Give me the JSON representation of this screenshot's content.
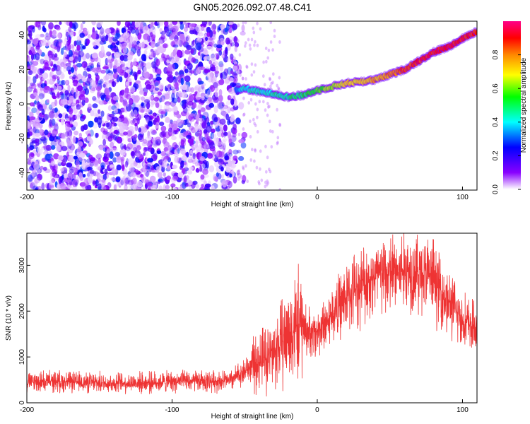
{
  "chart_data": [
    {
      "type": "heatmap",
      "title": "GN05.2026.092.07.48.C41",
      "xlabel": "Height of straight line (km)",
      "ylabel": "Frequency (Hz)",
      "xlim": [
        -200,
        110
      ],
      "ylim": [
        -50,
        48
      ],
      "xticks": [
        "-200",
        "-100",
        "0",
        "100"
      ],
      "yticks": [
        "40",
        "20",
        "0",
        "-20",
        "-40"
      ],
      "colorbar": {
        "label": "Normalized spectral amplitude",
        "range": [
          0,
          1
        ],
        "ticks": [
          "0.0",
          "0.2",
          "0.4",
          "0.6",
          "0.8"
        ],
        "colors": [
          "#ffffff",
          "#8800ff",
          "#0000ff",
          "#00ffff",
          "#00ff00",
          "#ffff00",
          "#ff8800",
          "#ff0000",
          "#ff0088"
        ]
      },
      "noise_region": {
        "x_from": -200,
        "x_to": -56,
        "amplitude_approx": 0.15
      },
      "frequency_track": {
        "x": [
          -56,
          -50,
          -40,
          -30,
          -20,
          -10,
          0,
          10,
          20,
          30,
          40,
          50,
          60,
          70,
          80,
          90,
          100,
          110
        ],
        "freq": [
          8,
          9,
          7,
          6,
          4,
          5,
          8,
          10,
          12,
          13,
          14,
          17,
          20,
          25,
          30,
          33,
          38,
          42
        ],
        "amplitude": [
          0.35,
          0.4,
          0.42,
          0.45,
          0.48,
          0.5,
          0.55,
          0.62,
          0.7,
          0.72,
          0.75,
          0.8,
          0.85,
          0.88,
          0.9,
          0.9,
          0.9,
          0.88
        ]
      }
    },
    {
      "type": "line",
      "xlabel": "Height of straight line (km)",
      "ylabel": "SNR (10 * v/v)",
      "xlim": [
        -200,
        110
      ],
      "ylim": [
        0,
        3700
      ],
      "xticks": [
        "-200",
        "-100",
        "0",
        "100"
      ],
      "yticks": [
        "0",
        "1000",
        "2000",
        "3000"
      ],
      "color": "#ee3333",
      "x": [
        -200,
        -180,
        -160,
        -140,
        -120,
        -100,
        -80,
        -60,
        -50,
        -40,
        -30,
        -25,
        -20,
        -15,
        -10,
        -5,
        0,
        10,
        20,
        30,
        40,
        50,
        60,
        70,
        80,
        90,
        100,
        110
      ],
      "y": [
        450,
        470,
        440,
        430,
        440,
        460,
        470,
        480,
        700,
        900,
        1100,
        1300,
        1500,
        1650,
        1700,
        1500,
        1550,
        1900,
        2300,
        2550,
        2750,
        2800,
        2900,
        2850,
        2700,
        2200,
        1800,
        1600
      ]
    }
  ]
}
